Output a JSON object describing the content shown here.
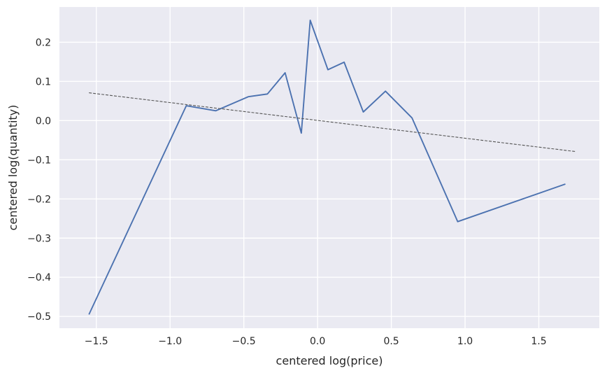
{
  "chart_data": {
    "type": "line",
    "title": "",
    "xlabel": "centered log(price)",
    "ylabel": "centered log(quantity)",
    "xlim": [
      -1.75,
      1.91
    ],
    "ylim": [
      -0.53,
      0.29
    ],
    "grid": true,
    "xticks": [
      -1.5,
      -1.0,
      -0.5,
      0.0,
      0.5,
      1.0,
      1.5
    ],
    "xtick_labels": [
      "−1.5",
      "−1.0",
      "−0.5",
      "0.0",
      "0.5",
      "1.0",
      "1.5"
    ],
    "yticks": [
      0.2,
      0.1,
      0.0,
      -0.1,
      -0.2,
      -0.3,
      -0.4,
      -0.5
    ],
    "ytick_labels": [
      "0.2",
      "0.1",
      "0.0",
      "−0.1",
      "−0.2",
      "−0.3",
      "−0.4",
      "−0.5"
    ],
    "series": [
      {
        "style": "solid",
        "color": "#4c72b0",
        "x": [
          -1.55,
          -0.89,
          -0.69,
          -0.47,
          -0.34,
          -0.22,
          -0.11,
          -0.05,
          0.07,
          0.18,
          0.31,
          0.46,
          0.64,
          0.95,
          1.68
        ],
        "y": [
          -0.495,
          0.038,
          0.025,
          0.061,
          0.068,
          0.122,
          -0.032,
          0.256,
          0.13,
          0.149,
          0.022,
          0.075,
          0.007,
          -0.258,
          -0.162
        ]
      },
      {
        "style": "dashed",
        "color": "#555555",
        "x": [
          -1.55,
          1.75
        ],
        "y": [
          0.071,
          -0.079
        ]
      }
    ]
  }
}
